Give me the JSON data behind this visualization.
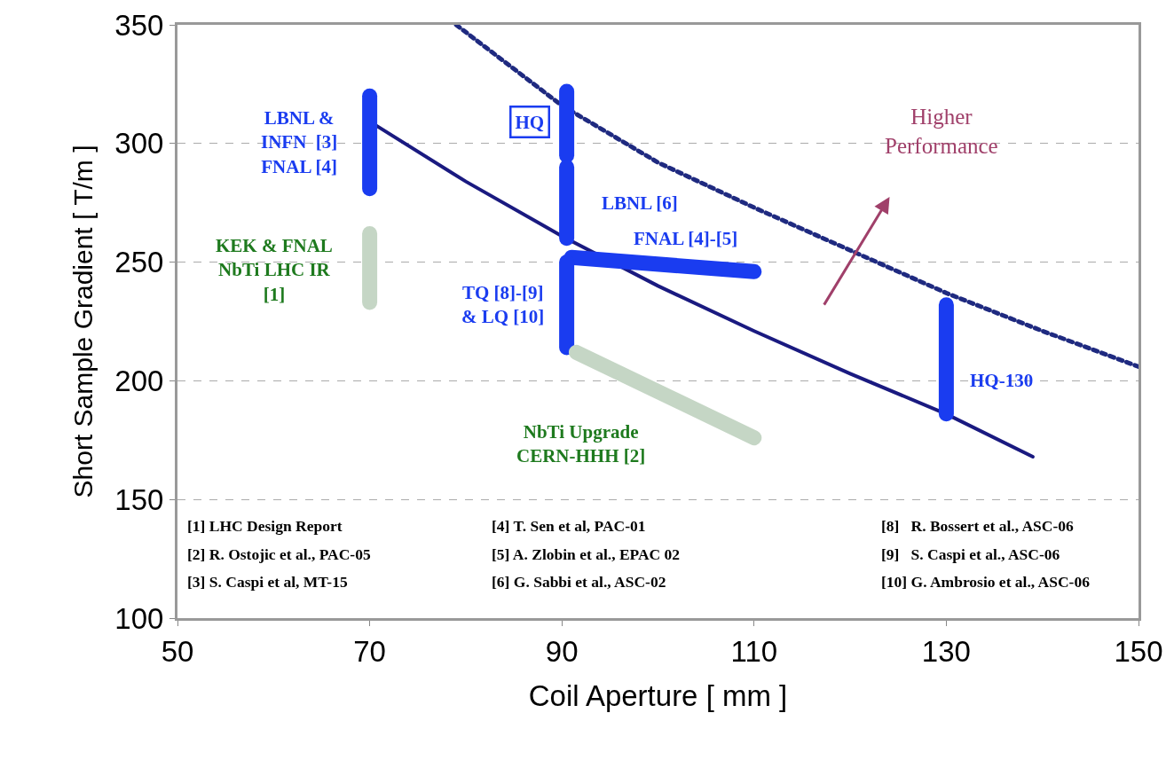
{
  "chart_data": {
    "type": "line",
    "xlabel": "Coil Aperture [ mm ]",
    "ylabel": "Short Sample Gradient [ T/m ]",
    "xlim": [
      50,
      150
    ],
    "xticks": [
      50,
      70,
      90,
      110,
      130,
      150
    ],
    "ylim": [
      100,
      350
    ],
    "yticks": [
      100,
      150,
      200,
      250,
      300,
      350
    ],
    "grid": "y",
    "legend": false,
    "series": [
      {
        "color": "#1a1a80",
        "line_style": "solid",
        "x": [
          70.5,
          80,
          90,
          100,
          110,
          120,
          130,
          139
        ],
        "values": [
          308,
          284,
          261,
          240,
          221,
          203,
          186,
          168
        ]
      },
      {
        "color": "#1f2a80",
        "line_style": "dotted",
        "x": [
          79,
          90,
          100,
          110,
          120,
          130,
          140,
          150
        ],
        "values": [
          350,
          316,
          292,
          273,
          255,
          237,
          221,
          206
        ]
      },
      {
        "name": "LBNL &\nINFN  [3]\nFNAL [4]",
        "color": "#1a3cf0",
        "x": [
          70,
          70
        ],
        "values": [
          281,
          320
        ]
      },
      {
        "name": "KEK & FNAL\nNbTi LHC IR\n[1]",
        "color": "#c5d6c5",
        "x": [
          70,
          70
        ],
        "values": [
          233,
          262
        ]
      },
      {
        "name": "HQ",
        "color": "#1a3cf0",
        "x": [
          90.5,
          90.5
        ],
        "values": [
          295,
          322
        ]
      },
      {
        "name": "LBNL [6]",
        "color": "#1a3cf0",
        "x": [
          90.5,
          90.5
        ],
        "values": [
          260,
          290
        ]
      },
      {
        "name": "FNAL [4]-[5]",
        "color": "#1a3cf0",
        "x": [
          91,
          110
        ],
        "values": [
          252,
          246
        ]
      },
      {
        "name": "TQ [8]-[9]\n& LQ [10]",
        "color": "#1a3cf0",
        "x": [
          90.5,
          90.5
        ],
        "values": [
          214,
          250
        ]
      },
      {
        "name": "NbTi Upgrade\nCERN-HHH [2]",
        "color": "#c5d6c5",
        "x": [
          91.5,
          110
        ],
        "values": [
          212,
          176
        ]
      },
      {
        "name": "HQ-130",
        "color": "#1a3cf0",
        "x": [
          130,
          130
        ],
        "values": [
          186,
          232
        ]
      }
    ],
    "annotations": [
      "[1] LHC Design Report",
      "[2] R. Ostojic et al., PAC-05",
      "[3] S. Caspi et al, MT-15",
      "[4] T. Sen et al, PAC-01",
      "[5] A. Zlobin et al., EPAC 02",
      "[6] G. Sabbi et al., ASC-02",
      "[8]   R. Bossert et al., ASC-06",
      "[9]   S. Caspi et al., ASC-06",
      "[10] G. Ambrosio et al., ASC-06",
      "Higher\nPerformance"
    ]
  }
}
